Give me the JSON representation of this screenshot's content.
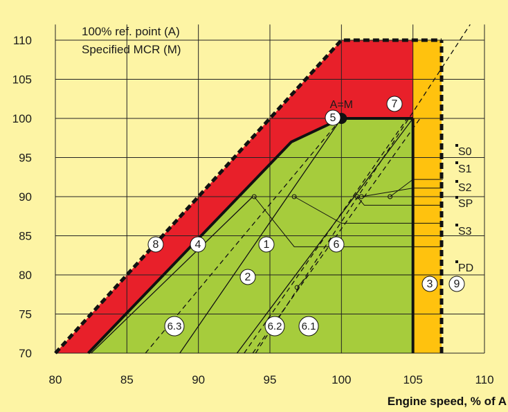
{
  "chart_data": {
    "type": "area",
    "title": "",
    "xlabel": "Engine speed, % of A",
    "ylabel": "",
    "xlim": [
      80,
      110
    ],
    "ylim": [
      70,
      112
    ],
    "x_ticks": [
      "80",
      "85",
      "90",
      "95",
      "100",
      "105",
      "110"
    ],
    "y_ticks": [
      "70",
      "75",
      "80",
      "85",
      "90",
      "95",
      "100",
      "105",
      "110"
    ],
    "grid": true,
    "legend_placement": "top-left",
    "legend_lines": [
      "100% ref. point (A)",
      "Specified MCR (M)"
    ],
    "colors": {
      "background": "#fdf4a4",
      "red_zone": "#e8202a",
      "green_zone": "#a6cc3c",
      "orange_zone": "#ffc20e",
      "lines": "#111111"
    },
    "regions": [
      {
        "name": "red",
        "points": [
          [
            80,
            70
          ],
          [
            100,
            110
          ],
          [
            107,
            110
          ],
          [
            107,
            100
          ],
          [
            100,
            100
          ],
          [
            96.5,
            97
          ],
          [
            82.3,
            70
          ]
        ]
      },
      {
        "name": "green",
        "points": [
          [
            82.3,
            70
          ],
          [
            96.5,
            97
          ],
          [
            100,
            100
          ],
          [
            105,
            100
          ],
          [
            105,
            70
          ]
        ]
      },
      {
        "name": "orange",
        "points": [
          [
            105,
            70
          ],
          [
            105,
            110
          ],
          [
            107,
            110
          ],
          [
            107,
            70
          ]
        ]
      }
    ],
    "lines": [
      {
        "name": "8",
        "style": "dashed-thick",
        "points": [
          [
            80,
            70
          ],
          [
            100,
            110
          ],
          [
            107,
            110
          ]
        ]
      },
      {
        "name": "4",
        "style": "solid-thick",
        "points": [
          [
            82.3,
            70
          ],
          [
            96.5,
            97
          ],
          [
            100,
            100
          ],
          [
            105,
            100
          ]
        ]
      },
      {
        "name": "3",
        "style": "solid-thick",
        "points": [
          [
            105,
            70
          ],
          [
            105,
            100
          ]
        ]
      },
      {
        "name": "9",
        "style": "dashed-thick",
        "points": [
          [
            107,
            70
          ],
          [
            107,
            110
          ]
        ]
      },
      {
        "name": "1",
        "style": "solid",
        "points": [
          [
            88.7,
            70
          ],
          [
            100,
            100
          ]
        ]
      },
      {
        "name": "2",
        "style": "dashed",
        "points": [
          [
            86.3,
            70
          ],
          [
            100,
            100
          ]
        ]
      },
      {
        "name": "6",
        "style": "solid",
        "points": [
          [
            92.7,
            70
          ],
          [
            105,
            100
          ]
        ]
      },
      {
        "name": "6.1",
        "style": "dashed",
        "points": [
          [
            93.8,
            70
          ],
          [
            105.5,
            100
          ]
        ]
      },
      {
        "name": "6.2",
        "style": "dashed",
        "points": [
          [
            93.2,
            70
          ],
          [
            104.6,
            100
          ]
        ]
      },
      {
        "name": "6.3",
        "style": "solid",
        "points": [
          [
            82.5,
            70
          ],
          [
            93.8,
            90
          ]
        ]
      },
      {
        "name": "reference diagonal",
        "style": "dashed",
        "points": [
          [
            94,
            70
          ],
          [
            109,
            112
          ]
        ]
      }
    ],
    "labeled_points": [
      {
        "label": "A=M",
        "x": 100,
        "y": 100
      },
      {
        "label": "S0",
        "x": 103.4,
        "y": 90
      },
      {
        "label": "S1",
        "x": 101.4,
        "y": 90
      },
      {
        "label": "S2",
        "x": 101.1,
        "y": 90
      },
      {
        "label": "SP",
        "x": 96.7,
        "y": 90
      },
      {
        "label": "S3",
        "x": 93.9,
        "y": 90
      },
      {
        "label": "PD",
        "x": 96.9,
        "y": 78.4
      }
    ],
    "circle_labels": [
      "1",
      "2",
      "3",
      "4",
      "5",
      "6",
      "6.1",
      "6.2",
      "6.3",
      "7",
      "8",
      "9"
    ],
    "right_labels": [
      "S0",
      "S1",
      "S2",
      "SP",
      "S3",
      "PD"
    ],
    "point_label": "A=M"
  }
}
